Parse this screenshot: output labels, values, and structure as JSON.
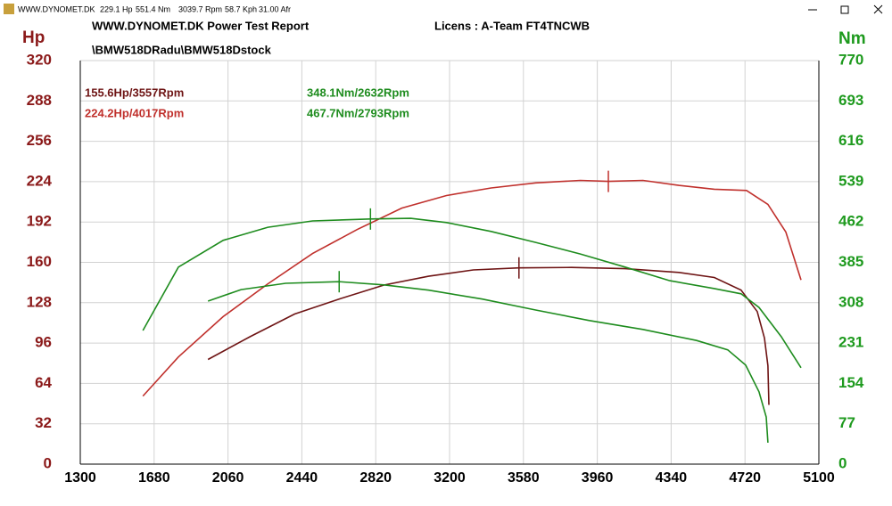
{
  "window": {
    "fields": [
      "WWW.DYNOMET.DK",
      "229.1 Hp",
      "551.4 Nm",
      "3039.7 Rpm",
      "58.7 Kph",
      "31.00 Afr"
    ]
  },
  "header": {
    "title": "WWW.DYNOMET.DK  Power Test Report",
    "license": "Licens :  A-Team    FT4TNCWB",
    "files": "\\BMW518DRadu\\BMW518Dstock"
  },
  "chart_data": {
    "type": "line",
    "y_label": "Hp",
    "y2_label": "Nm",
    "xlim": [
      1300,
      5100
    ],
    "xticks": [
      1300,
      1680,
      2060,
      2440,
      2820,
      3200,
      3580,
      3960,
      4340,
      4720,
      5100
    ],
    "ylim": [
      0,
      320
    ],
    "yticks": [
      0,
      32,
      64,
      96,
      128,
      160,
      192,
      224,
      256,
      288,
      320
    ],
    "y2lim": [
      0,
      770
    ],
    "y2ticks": [
      0,
      77,
      154,
      231,
      308,
      385,
      462,
      539,
      616,
      693,
      770
    ],
    "grid": true,
    "series": [
      {
        "color": "#c0302c",
        "x": [
          1622,
          1805,
          2035,
          2265,
          2495,
          2724,
          2954,
          3184,
          3414,
          3643,
          3873,
          4017,
          4195,
          4379,
          4562,
          4728,
          4838,
          4930,
          5008
        ],
        "values": [
          54,
          85,
          117,
          143,
          167,
          186,
          203,
          213,
          219,
          223,
          225,
          224.2,
          225,
          221,
          218,
          217,
          206,
          184,
          146
        ]
      },
      {
        "color": "#6e1414",
        "x": [
          1957,
          2173,
          2403,
          2633,
          2862,
          3092,
          3322,
          3557,
          3827,
          4103,
          4379,
          4562,
          4700,
          4783,
          4820,
          4838,
          4843
        ],
        "values": [
          83,
          101,
          119,
          131,
          142,
          149,
          154,
          155.6,
          156,
          155,
          152,
          148,
          138,
          121,
          100,
          78,
          47
        ]
      },
      {
        "color": "#1e8c1e",
        "axis": "y2",
        "x": [
          1622,
          1805,
          2035,
          2265,
          2495,
          2793,
          3000,
          3184,
          3414,
          3643,
          3873,
          4103,
          4333,
          4562,
          4700,
          4792,
          4907,
          5008
        ],
        "values": [
          255,
          376,
          427,
          452,
          464,
          467.7,
          469,
          461,
          444,
          423,
          401,
          376,
          350,
          335,
          325,
          299,
          243,
          184
        ]
      },
      {
        "color": "#1e8c1e",
        "axis": "y2",
        "x": [
          1957,
          2127,
          2357,
          2632,
          2862,
          3092,
          3368,
          3643,
          3919,
          4195,
          4471,
          4631,
          4723,
          4792,
          4829,
          4838
        ],
        "values": [
          311,
          333,
          345,
          348.1,
          342,
          332,
          315,
          294,
          274,
          257,
          236,
          218,
          189,
          138,
          90,
          41
        ]
      }
    ],
    "annotations": [
      {
        "text": "155.6Hp/3557Rpm",
        "x": 3557,
        "y": 155.6,
        "color": "#6e1414"
      },
      {
        "text": "224.2Hp/4017Rpm",
        "x": 4017,
        "y": 224.2,
        "color": "#c0302c"
      },
      {
        "text": "348.1Nm/2632Rpm",
        "x": 2632,
        "y": 348.1,
        "color": "#1e8c1e",
        "axis": "y2"
      },
      {
        "text": "467.7Nm/2793Rpm",
        "x": 2793,
        "y": 467.7,
        "color": "#1e8c1e",
        "axis": "y2"
      }
    ]
  }
}
